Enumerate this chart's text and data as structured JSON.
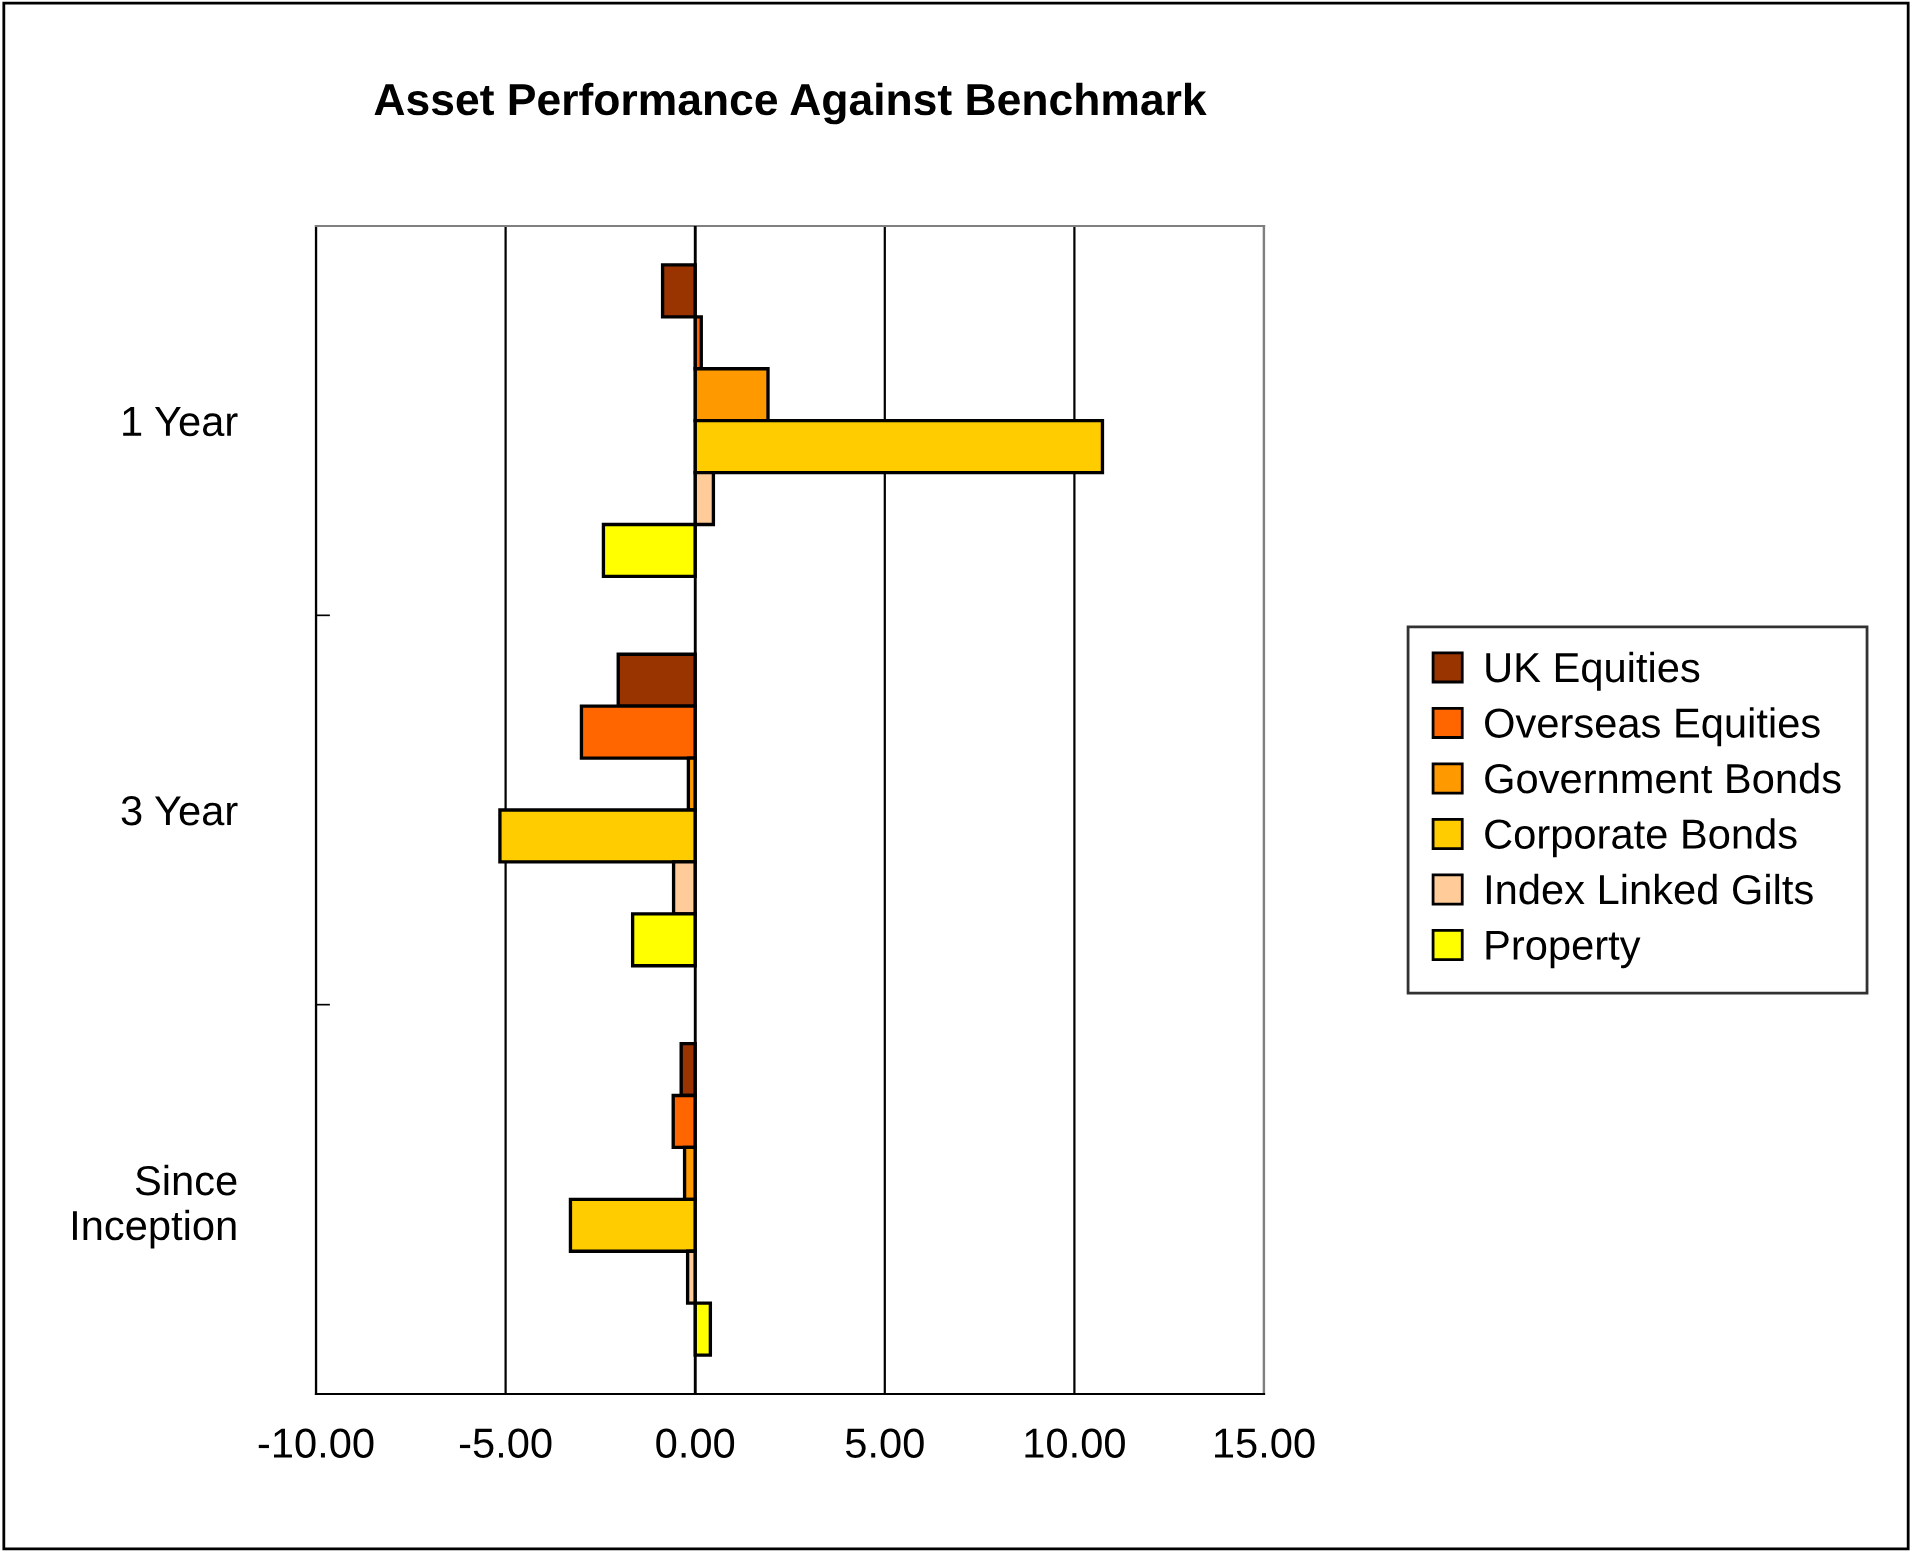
{
  "chart_data": {
    "type": "bar",
    "orientation": "horizontal",
    "title": "Asset Performance Against Benchmark",
    "categories": [
      "1 Year",
      "3 Year",
      "Since\nInception"
    ],
    "series": [
      {
        "name": "UK Equities",
        "color": "#993300",
        "values": [
          -0.86,
          -2.03,
          -0.37
        ]
      },
      {
        "name": "Overseas Equities",
        "color": "#ff6600",
        "values": [
          0.16,
          -3.0,
          -0.58
        ]
      },
      {
        "name": "Government Bonds",
        "color": "#ff9900",
        "values": [
          1.92,
          -0.18,
          -0.28
        ]
      },
      {
        "name": "Corporate Bonds",
        "color": "#ffcc00",
        "values": [
          10.74,
          -5.15,
          -3.29
        ]
      },
      {
        "name": "Index Linked Gilts",
        "color": "#ffcc99",
        "values": [
          0.48,
          -0.57,
          -0.2
        ]
      },
      {
        "name": "Property",
        "color": "#ffff00",
        "values": [
          -2.42,
          -1.65,
          0.4
        ]
      }
    ],
    "xlim": [
      -10,
      15
    ],
    "xticks": [
      {
        "value": -10,
        "label": "-10.00"
      },
      {
        "value": -5,
        "label": "-5.00"
      },
      {
        "value": 0,
        "label": "0.00"
      },
      {
        "value": 5,
        "label": "5.00"
      },
      {
        "value": 10,
        "label": "10.00"
      },
      {
        "value": 15,
        "label": "15.00"
      }
    ],
    "grid": "x",
    "legend": "right"
  }
}
